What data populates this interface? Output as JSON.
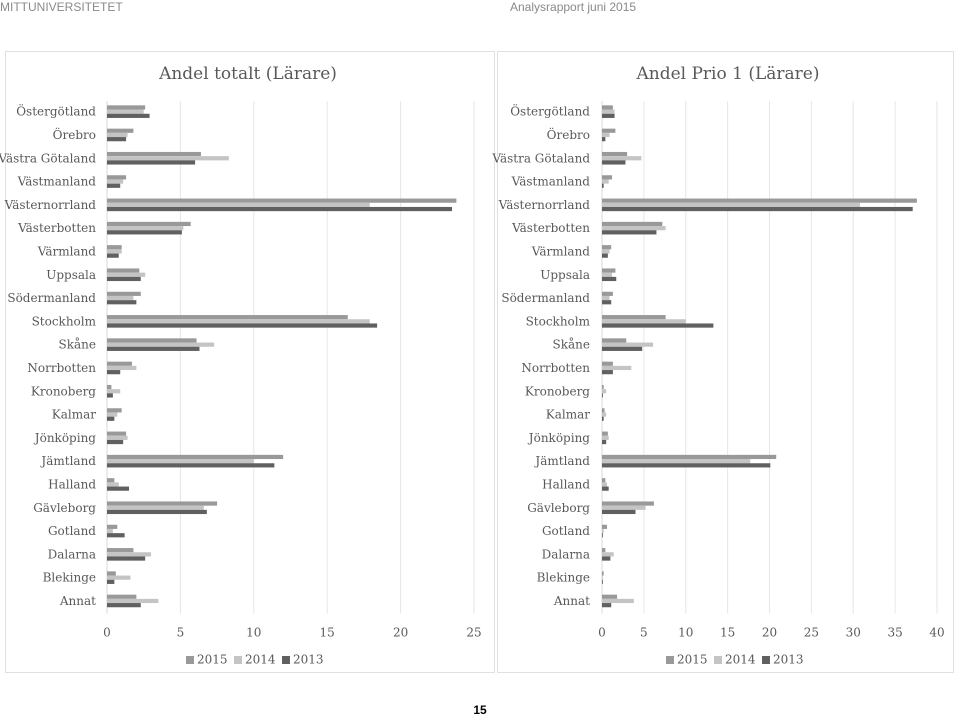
{
  "header": {
    "left": "MITTUNIVERSITETET",
    "right": "Analysrapport juni 2015"
  },
  "page_number": "15",
  "colors": {
    "2015": "#999999",
    "2014": "#c4c4c4",
    "2013": "#606060",
    "grid": "#e6e6e6",
    "axis": "#d9d9d9"
  },
  "chart_data": [
    {
      "type": "bar",
      "orientation": "horizontal",
      "title": "Andel totalt (Lärare)",
      "categories": [
        "Östergötland",
        "Örebro",
        "Västra Götaland",
        "Västmanland",
        "Västernorrland",
        "Västerbotten",
        "Värmland",
        "Uppsala",
        "Södermanland",
        "Stockholm",
        "Skåne",
        "Norrbotten",
        "Kronoberg",
        "Kalmar",
        "Jönköping",
        "Jämtland",
        "Halland",
        "Gävleborg",
        "Gotland",
        "Dalarna",
        "Blekinge",
        "Annat"
      ],
      "series": [
        {
          "name": "2015",
          "values": [
            2.6,
            1.8,
            6.4,
            1.3,
            23.8,
            5.7,
            1.0,
            2.2,
            2.3,
            16.4,
            6.1,
            1.7,
            0.3,
            1.0,
            1.3,
            12.0,
            0.5,
            7.5,
            0.7,
            1.8,
            0.6,
            2.0
          ]
        },
        {
          "name": "2014",
          "values": [
            2.5,
            1.4,
            8.3,
            1.1,
            17.9,
            5.2,
            1.0,
            2.6,
            1.8,
            17.9,
            7.3,
            2.0,
            0.9,
            0.7,
            1.4,
            10.0,
            0.8,
            6.6,
            0.4,
            3.0,
            1.6,
            3.5
          ]
        },
        {
          "name": "2013",
          "values": [
            2.9,
            1.3,
            6.0,
            0.9,
            23.5,
            5.1,
            0.8,
            2.3,
            2.0,
            18.4,
            6.3,
            0.9,
            0.4,
            0.5,
            1.1,
            11.4,
            1.5,
            6.8,
            1.2,
            2.6,
            0.5,
            2.3
          ]
        }
      ],
      "xlim": [
        0,
        25
      ],
      "xticks": [
        0,
        5,
        10,
        15,
        20,
        25
      ],
      "grid": true,
      "legend": "bottom"
    },
    {
      "type": "bar",
      "orientation": "horizontal",
      "title": "Andel Prio 1 (Lärare)",
      "categories": [
        "Östergötland",
        "Örebro",
        "Västra Götaland",
        "Västmanland",
        "Västernorrland",
        "Västerbotten",
        "Värmland",
        "Uppsala",
        "Södermanland",
        "Stockholm",
        "Skåne",
        "Norrbotten",
        "Kronoberg",
        "Kalmar",
        "Jönköping",
        "Jämtland",
        "Halland",
        "Gävleborg",
        "Gotland",
        "Dalarna",
        "Blekinge",
        "Annat"
      ],
      "series": [
        {
          "name": "2015",
          "values": [
            1.3,
            1.6,
            3.0,
            1.2,
            37.6,
            7.2,
            1.1,
            1.6,
            1.3,
            7.6,
            2.9,
            1.3,
            0.2,
            0.3,
            0.7,
            20.8,
            0.4,
            6.2,
            0.6,
            0.4,
            0.2,
            1.8
          ]
        },
        {
          "name": "2014",
          "values": [
            1.5,
            0.9,
            4.7,
            0.8,
            30.8,
            7.6,
            0.9,
            1.2,
            0.9,
            10.0,
            6.1,
            3.5,
            0.5,
            0.5,
            0.8,
            17.7,
            0.6,
            5.2,
            0.2,
            1.4,
            0.1,
            3.8
          ]
        },
        {
          "name": "2013",
          "values": [
            1.5,
            0.4,
            2.8,
            0.2,
            37.1,
            6.5,
            0.7,
            1.7,
            1.1,
            13.3,
            4.8,
            1.3,
            0.1,
            0.2,
            0.5,
            20.1,
            0.8,
            4.0,
            0.1,
            1.0,
            0.1,
            1.1
          ]
        }
      ],
      "xlim": [
        0,
        40
      ],
      "xticks": [
        0,
        5,
        10,
        15,
        20,
        25,
        30,
        35,
        40
      ],
      "grid": true,
      "legend": "bottom"
    }
  ]
}
